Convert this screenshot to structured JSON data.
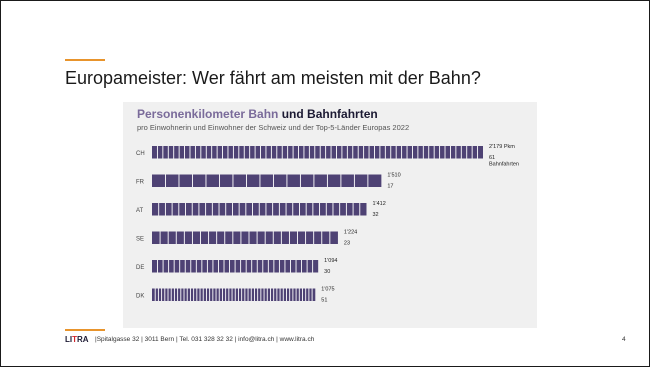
{
  "slide": {
    "title": "Europameister: Wer fährt am meisten mit der Bahn?",
    "page_number": "4"
  },
  "footer": {
    "logo_a": "LI",
    "logo_b": "T",
    "logo_c": "RA",
    "address": "|Spitalgasse 32 | 3011 Bern | Tel. 031 328 32 32 | info@litra.ch | www.litra.ch"
  },
  "colors": {
    "bar": "#4e4274",
    "bar_stripe": "#ffffff",
    "panel": "#f0f0f0",
    "accent": "#e8942c"
  },
  "chart_data": {
    "type": "bar",
    "orientation": "horizontal",
    "title_part1": "Personenkilometer Bahn",
    "title_part2": "und Bahnfahrten",
    "subtitle": "pro Einwohnerin und Einwohner der Schweiz und der Top-5-Länder Europas 2022",
    "categories": [
      "CH",
      "FR",
      "AT",
      "SE",
      "DE",
      "DK"
    ],
    "series": [
      {
        "name": "Pkm",
        "values": [
          2179,
          1510,
          1412,
          1224,
          1094,
          1075
        ],
        "labels": [
          "2'179 Pkm",
          "1'510",
          "1'412",
          "1'224",
          "1'094",
          "1'075"
        ]
      },
      {
        "name": "Bahnfahrten",
        "values": [
          61,
          17,
          32,
          23,
          30,
          51
        ],
        "labels": [
          "61",
          "17",
          "32",
          "23",
          "30",
          "51"
        ]
      }
    ],
    "ch_trips_unit": "Bahnfahrten",
    "note": "Bar length = Personenkilometer; each bar is divided into segments, one per Bahnfahrt"
  }
}
